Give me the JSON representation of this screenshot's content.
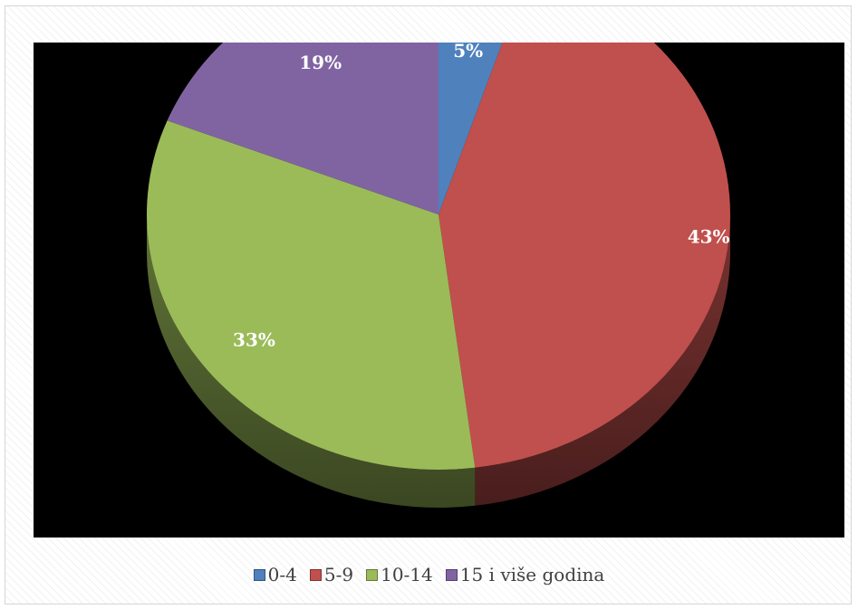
{
  "chart_data": {
    "type": "pie",
    "title": "",
    "series": [
      {
        "category": "0-4",
        "value": 5,
        "label": "5%",
        "color": "#4F81BD"
      },
      {
        "category": "5-9",
        "value": 43,
        "label": "43%",
        "color": "#C0504D"
      },
      {
        "category": "10-14",
        "value": 33,
        "label": "33%",
        "color": "#9BBB59"
      },
      {
        "category": "15 i više godina",
        "value": 19,
        "label": "19%",
        "color": "#8064A2"
      }
    ],
    "legend_position": "bottom",
    "plot_background": "#000000",
    "style": "3d-perspective"
  }
}
